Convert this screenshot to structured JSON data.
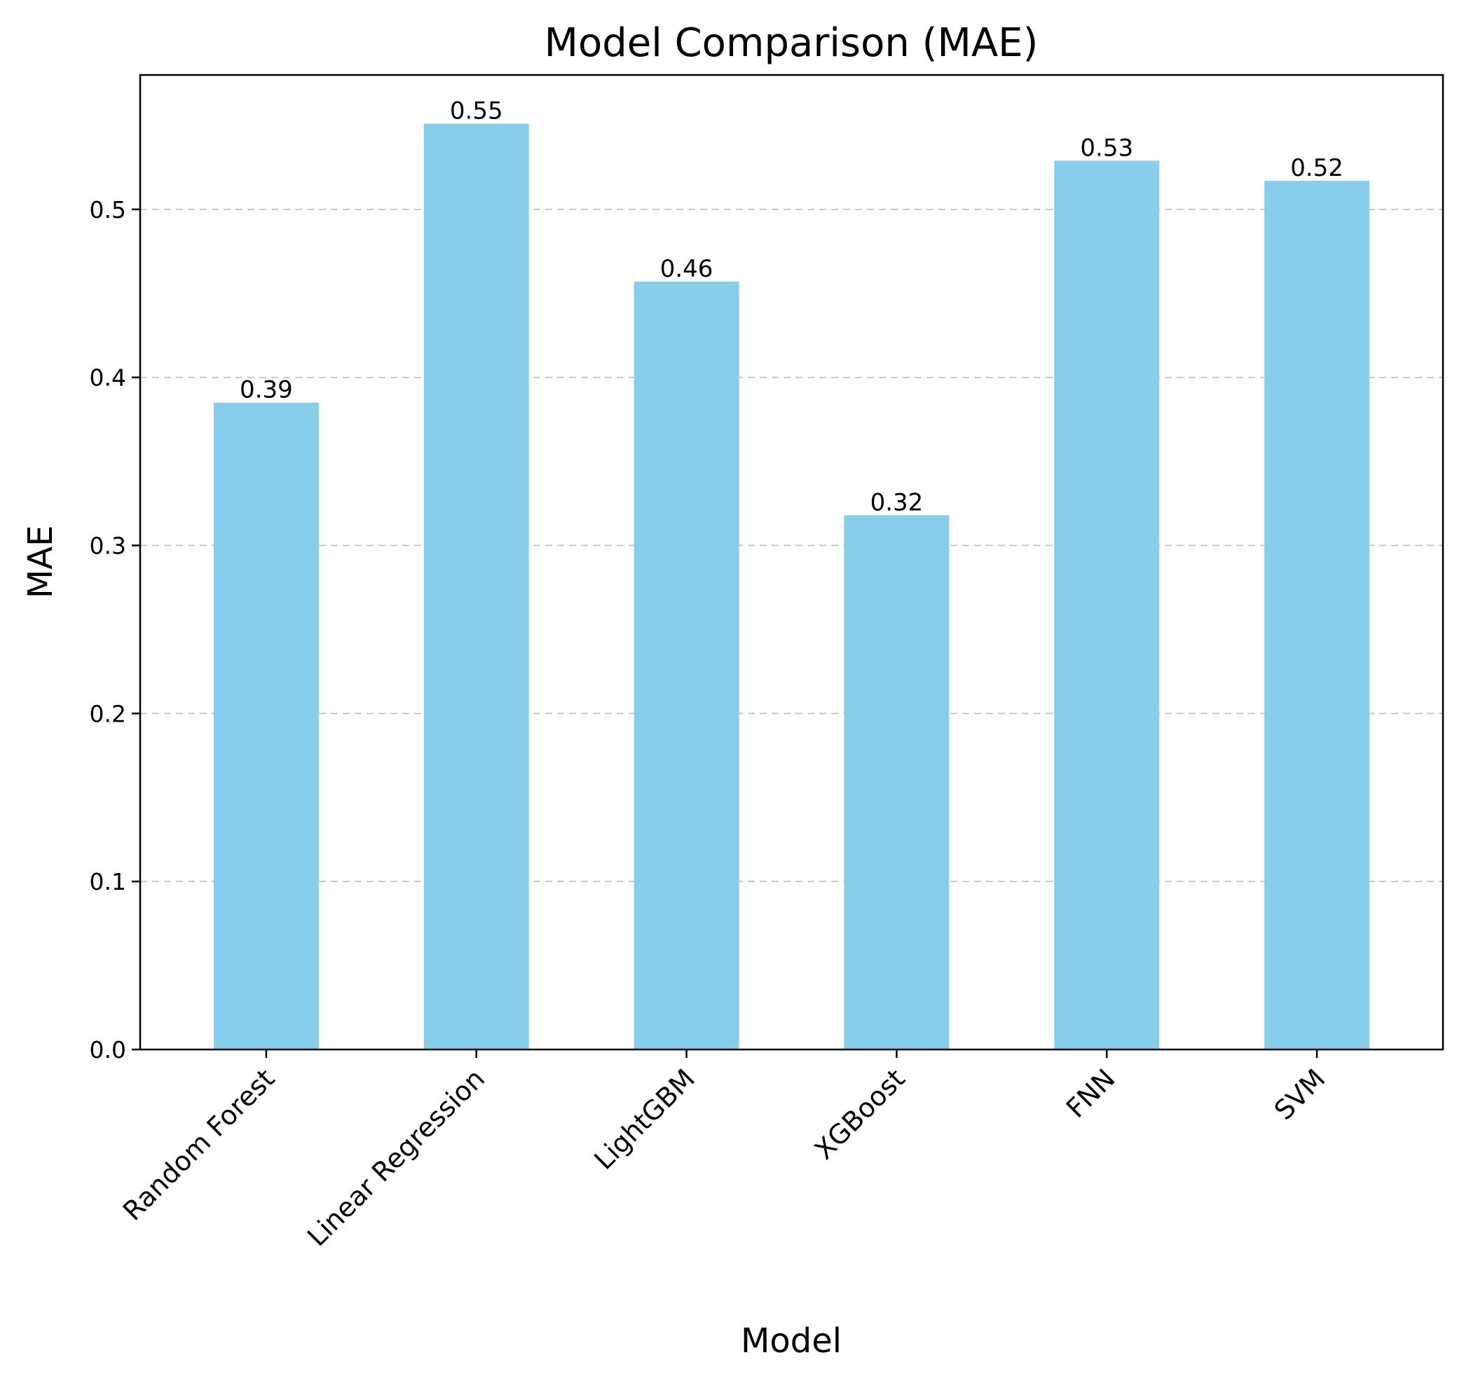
{
  "chart_data": {
    "type": "bar",
    "title": "Model Comparison (MAE)",
    "xlabel": "Model",
    "ylabel": "MAE",
    "categories": [
      "Random Forest",
      "Linear Regression",
      "LightGBM",
      "XGBoost",
      "FNN",
      "SVM"
    ],
    "values": [
      0.385,
      0.551,
      0.457,
      0.318,
      0.529,
      0.517
    ],
    "value_labels": [
      "0.39",
      "0.55",
      "0.46",
      "0.32",
      "0.53",
      "0.52"
    ],
    "ylim": [
      0,
      0.58
    ],
    "yticks": [
      0.0,
      0.1,
      0.2,
      0.3,
      0.4,
      0.5
    ],
    "ytick_labels": [
      "0.0",
      "0.1",
      "0.2",
      "0.3",
      "0.4",
      "0.5"
    ],
    "grid": "y-dashed",
    "bar_color": "#87ceeb",
    "grid_color": "#c8c8c8"
  }
}
